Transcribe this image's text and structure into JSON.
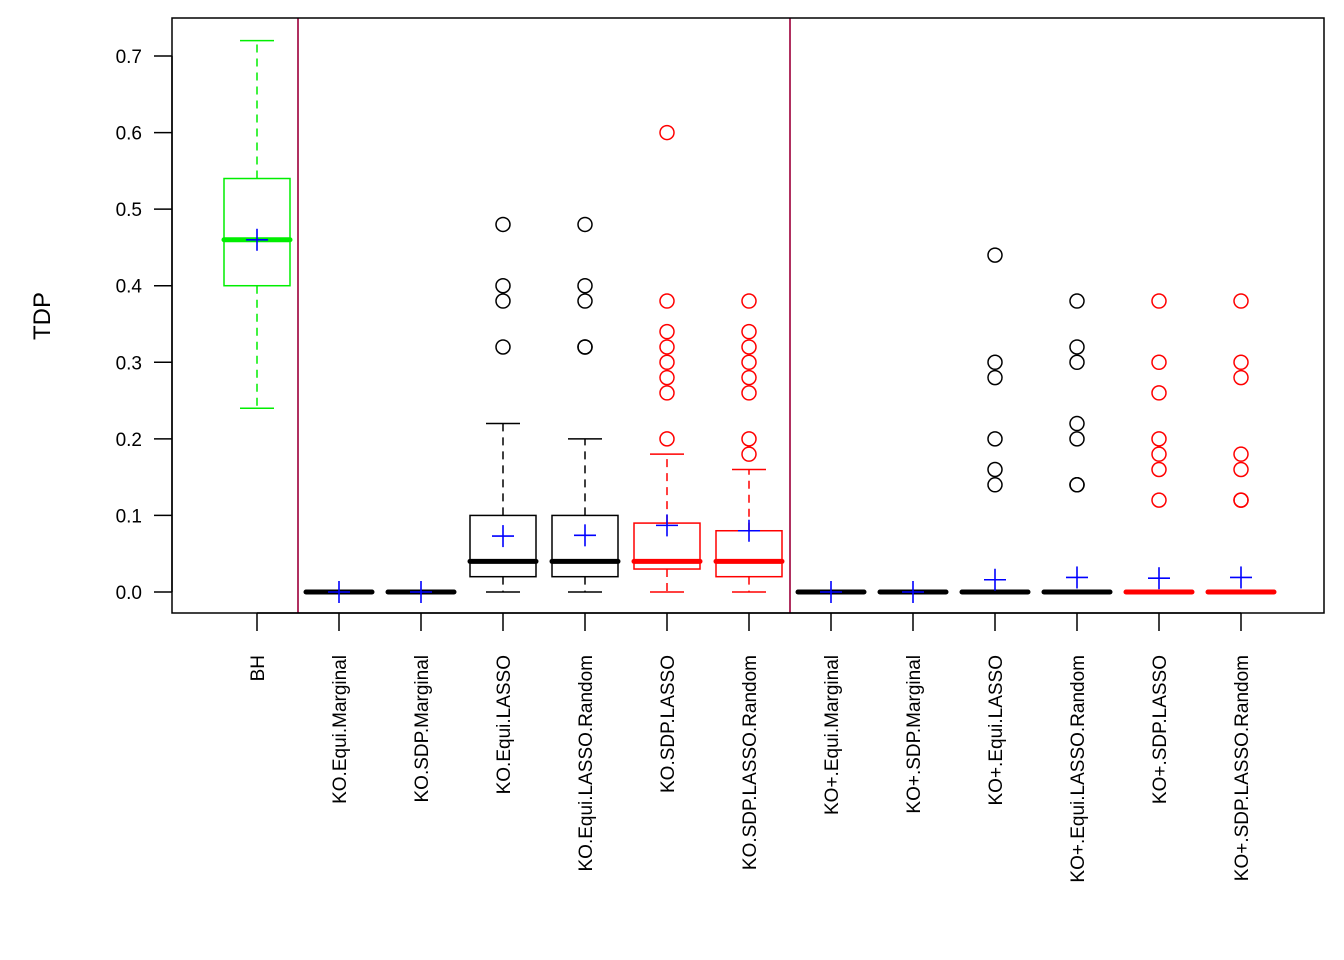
{
  "chart_data": {
    "type": "boxplot",
    "title": "",
    "xlabel": "",
    "ylabel": "TDP",
    "ylim": [
      -0.028,
      0.745
    ],
    "yticks": [
      0.0,
      0.1,
      0.2,
      0.3,
      0.4,
      0.5,
      0.6,
      0.7
    ],
    "ytick_labels": [
      "0.0",
      "0.1",
      "0.2",
      "0.3",
      "0.4",
      "0.5",
      "0.6",
      "0.7"
    ],
    "grid": false,
    "legend": "none",
    "mean_marker": {
      "symbol": "+",
      "color": "#0000ff"
    },
    "group_dividers": {
      "after_indices": [
        0,
        6
      ],
      "color": "#b03060"
    },
    "categories": [
      "BH",
      "KO.Equi.Marginal",
      "KO.SDP.Marginal",
      "KO.Equi.LASSO",
      "KO.Equi.LASSO.Random",
      "KO.SDP.LASSO",
      "KO.SDP.LASSO.Random",
      "KO+.Equi.Marginal",
      "KO+.SDP.Marginal",
      "KO+.Equi.LASSO",
      "KO+.Equi.LASSO.Random",
      "KO+.SDP.LASSO",
      "KO+.SDP.LASSO.Random"
    ],
    "boxes": [
      {
        "name": "BH",
        "color": "#00ee00",
        "whisker_low": 0.24,
        "q1": 0.4,
        "median": 0.46,
        "q3": 0.54,
        "whisker_high": 0.72,
        "mean": 0.46,
        "outliers": []
      },
      {
        "name": "KO.Equi.Marginal",
        "color": "#000000",
        "whisker_low": 0.0,
        "q1": 0.0,
        "median": 0.0,
        "q3": 0.0,
        "whisker_high": 0.0,
        "mean": 0.0,
        "outliers": []
      },
      {
        "name": "KO.SDP.Marginal",
        "color": "#000000",
        "whisker_low": 0.0,
        "q1": 0.0,
        "median": 0.0,
        "q3": 0.0,
        "whisker_high": 0.0,
        "mean": 0.0,
        "outliers": []
      },
      {
        "name": "KO.Equi.LASSO",
        "color": "#000000",
        "whisker_low": 0.0,
        "q1": 0.02,
        "median": 0.04,
        "q3": 0.1,
        "whisker_high": 0.22,
        "mean": 0.073,
        "outliers": [
          0.32,
          0.38,
          0.4,
          0.48
        ]
      },
      {
        "name": "KO.Equi.LASSO.Random",
        "color": "#000000",
        "whisker_low": 0.0,
        "q1": 0.02,
        "median": 0.04,
        "q3": 0.1,
        "whisker_high": 0.2,
        "mean": 0.074,
        "outliers": [
          0.32,
          0.32,
          0.38,
          0.4,
          0.48
        ]
      },
      {
        "name": "KO.SDP.LASSO",
        "color": "#ff0000",
        "whisker_low": 0.0,
        "q1": 0.03,
        "median": 0.04,
        "q3": 0.09,
        "whisker_high": 0.18,
        "mean": 0.087,
        "outliers": [
          0.2,
          0.26,
          0.28,
          0.3,
          0.32,
          0.34,
          0.38,
          0.6
        ]
      },
      {
        "name": "KO.SDP.LASSO.Random",
        "color": "#ff0000",
        "whisker_low": 0.0,
        "q1": 0.02,
        "median": 0.04,
        "q3": 0.08,
        "whisker_high": 0.16,
        "mean": 0.08,
        "outliers": [
          0.18,
          0.2,
          0.26,
          0.28,
          0.3,
          0.32,
          0.34,
          0.38
        ]
      },
      {
        "name": "KO+.Equi.Marginal",
        "color": "#000000",
        "whisker_low": 0.0,
        "q1": 0.0,
        "median": 0.0,
        "q3": 0.0,
        "whisker_high": 0.0,
        "mean": 0.0,
        "outliers": []
      },
      {
        "name": "KO+.SDP.Marginal",
        "color": "#000000",
        "whisker_low": 0.0,
        "q1": 0.0,
        "median": 0.0,
        "q3": 0.0,
        "whisker_high": 0.0,
        "mean": 0.0,
        "outliers": []
      },
      {
        "name": "KO+.Equi.LASSO",
        "color": "#000000",
        "whisker_low": 0.0,
        "q1": 0.0,
        "median": 0.0,
        "q3": 0.0,
        "whisker_high": 0.0,
        "mean": 0.016,
        "outliers": [
          0.14,
          0.16,
          0.2,
          0.28,
          0.3,
          0.44
        ]
      },
      {
        "name": "KO+.Equi.LASSO.Random",
        "color": "#000000",
        "whisker_low": 0.0,
        "q1": 0.0,
        "median": 0.0,
        "q3": 0.0,
        "whisker_high": 0.0,
        "mean": 0.019,
        "outliers": [
          0.14,
          0.14,
          0.2,
          0.22,
          0.3,
          0.32,
          0.38
        ]
      },
      {
        "name": "KO+.SDP.LASSO",
        "color": "#ff0000",
        "whisker_low": 0.0,
        "q1": 0.0,
        "median": 0.0,
        "q3": 0.0,
        "whisker_high": 0.0,
        "mean": 0.018,
        "outliers": [
          0.12,
          0.16,
          0.18,
          0.2,
          0.26,
          0.3,
          0.38
        ]
      },
      {
        "name": "KO+.SDP.LASSO.Random",
        "color": "#ff0000",
        "whisker_low": 0.0,
        "q1": 0.0,
        "median": 0.0,
        "q3": 0.0,
        "whisker_high": 0.0,
        "mean": 0.019,
        "outliers": [
          0.12,
          0.12,
          0.16,
          0.18,
          0.28,
          0.3,
          0.38
        ]
      }
    ]
  }
}
